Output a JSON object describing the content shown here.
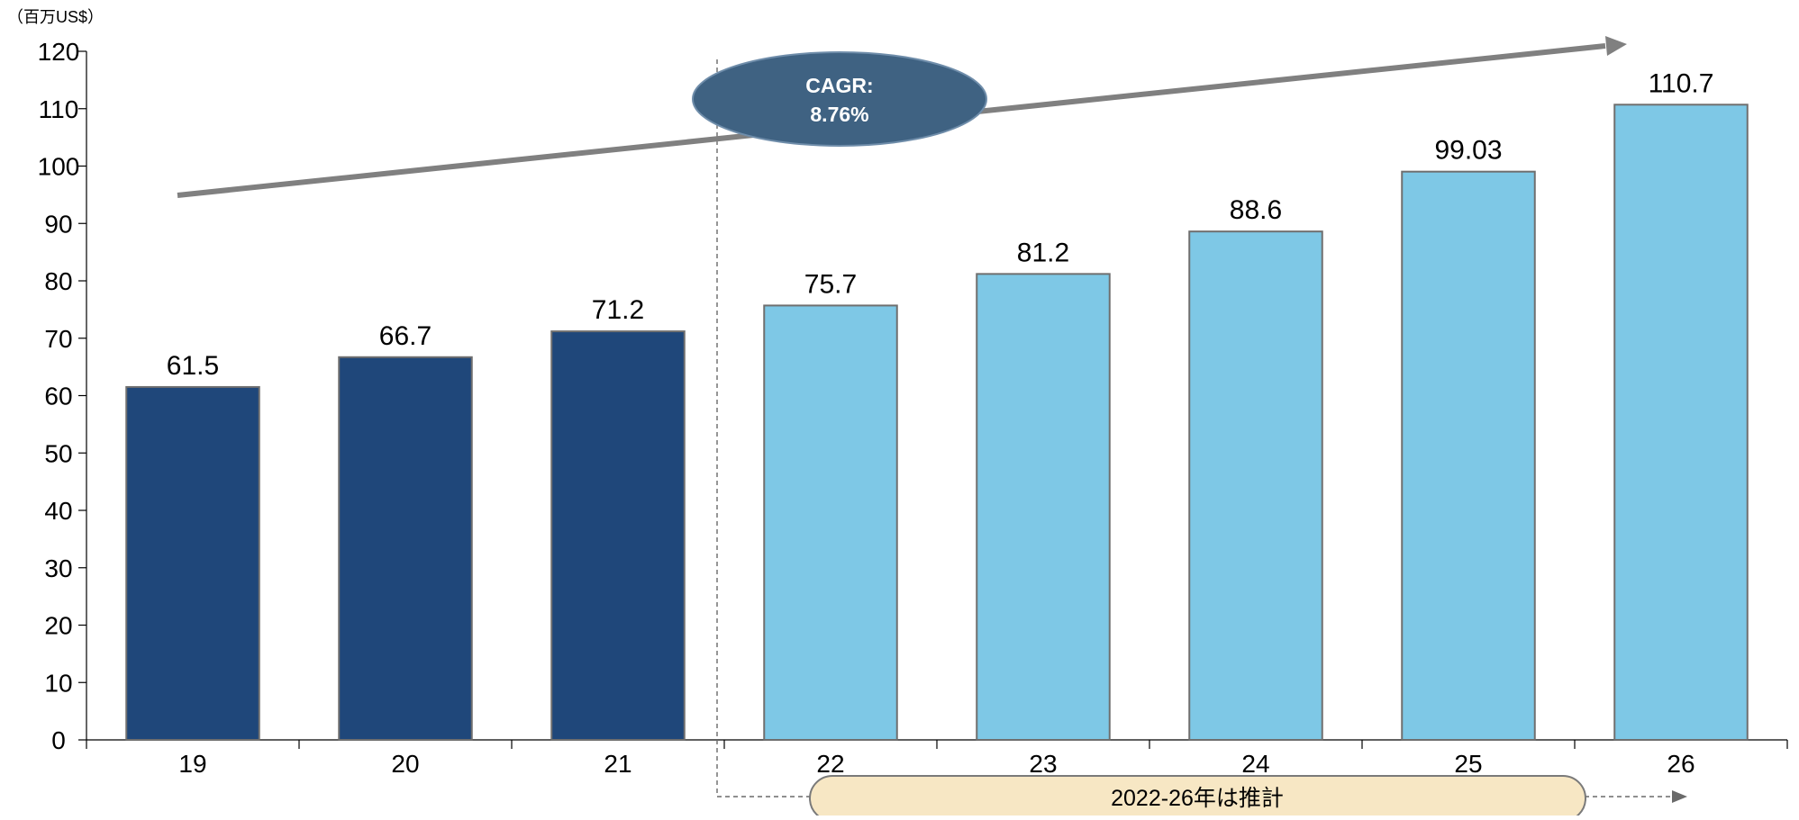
{
  "chart_data": {
    "type": "bar",
    "unit_label": "（百万US$）",
    "categories": [
      "19",
      "20",
      "21",
      "22",
      "23",
      "24",
      "25",
      "26"
    ],
    "values": [
      61.5,
      66.7,
      71.2,
      75.7,
      81.2,
      88.6,
      99.03,
      110.7
    ],
    "value_labels": [
      "61.5",
      "66.7",
      "71.2",
      "75.7",
      "81.2",
      "88.6",
      "99.03",
      "110.7"
    ],
    "ylim": [
      0,
      120
    ],
    "yticks": [
      0,
      10,
      20,
      30,
      40,
      50,
      60,
      70,
      80,
      90,
      100,
      110,
      120
    ],
    "actual_count": 3,
    "colors": {
      "actual": "#1f477a",
      "forecast": "#7ec8e6",
      "bar_stroke": "#6f6f6f",
      "trend": "#808080",
      "cagr_fill": "#3f6282",
      "cagr_stroke": "#6f8daa",
      "forecast_label_fill": "#f7e7c4",
      "forecast_label_stroke": "#7a7a7a",
      "axis": "#000000"
    },
    "cagr_label_line1": "CAGR:",
    "cagr_label_line2": "8.76%",
    "forecast_label": "2022-26年は推計",
    "grid": false,
    "legend": "none"
  }
}
